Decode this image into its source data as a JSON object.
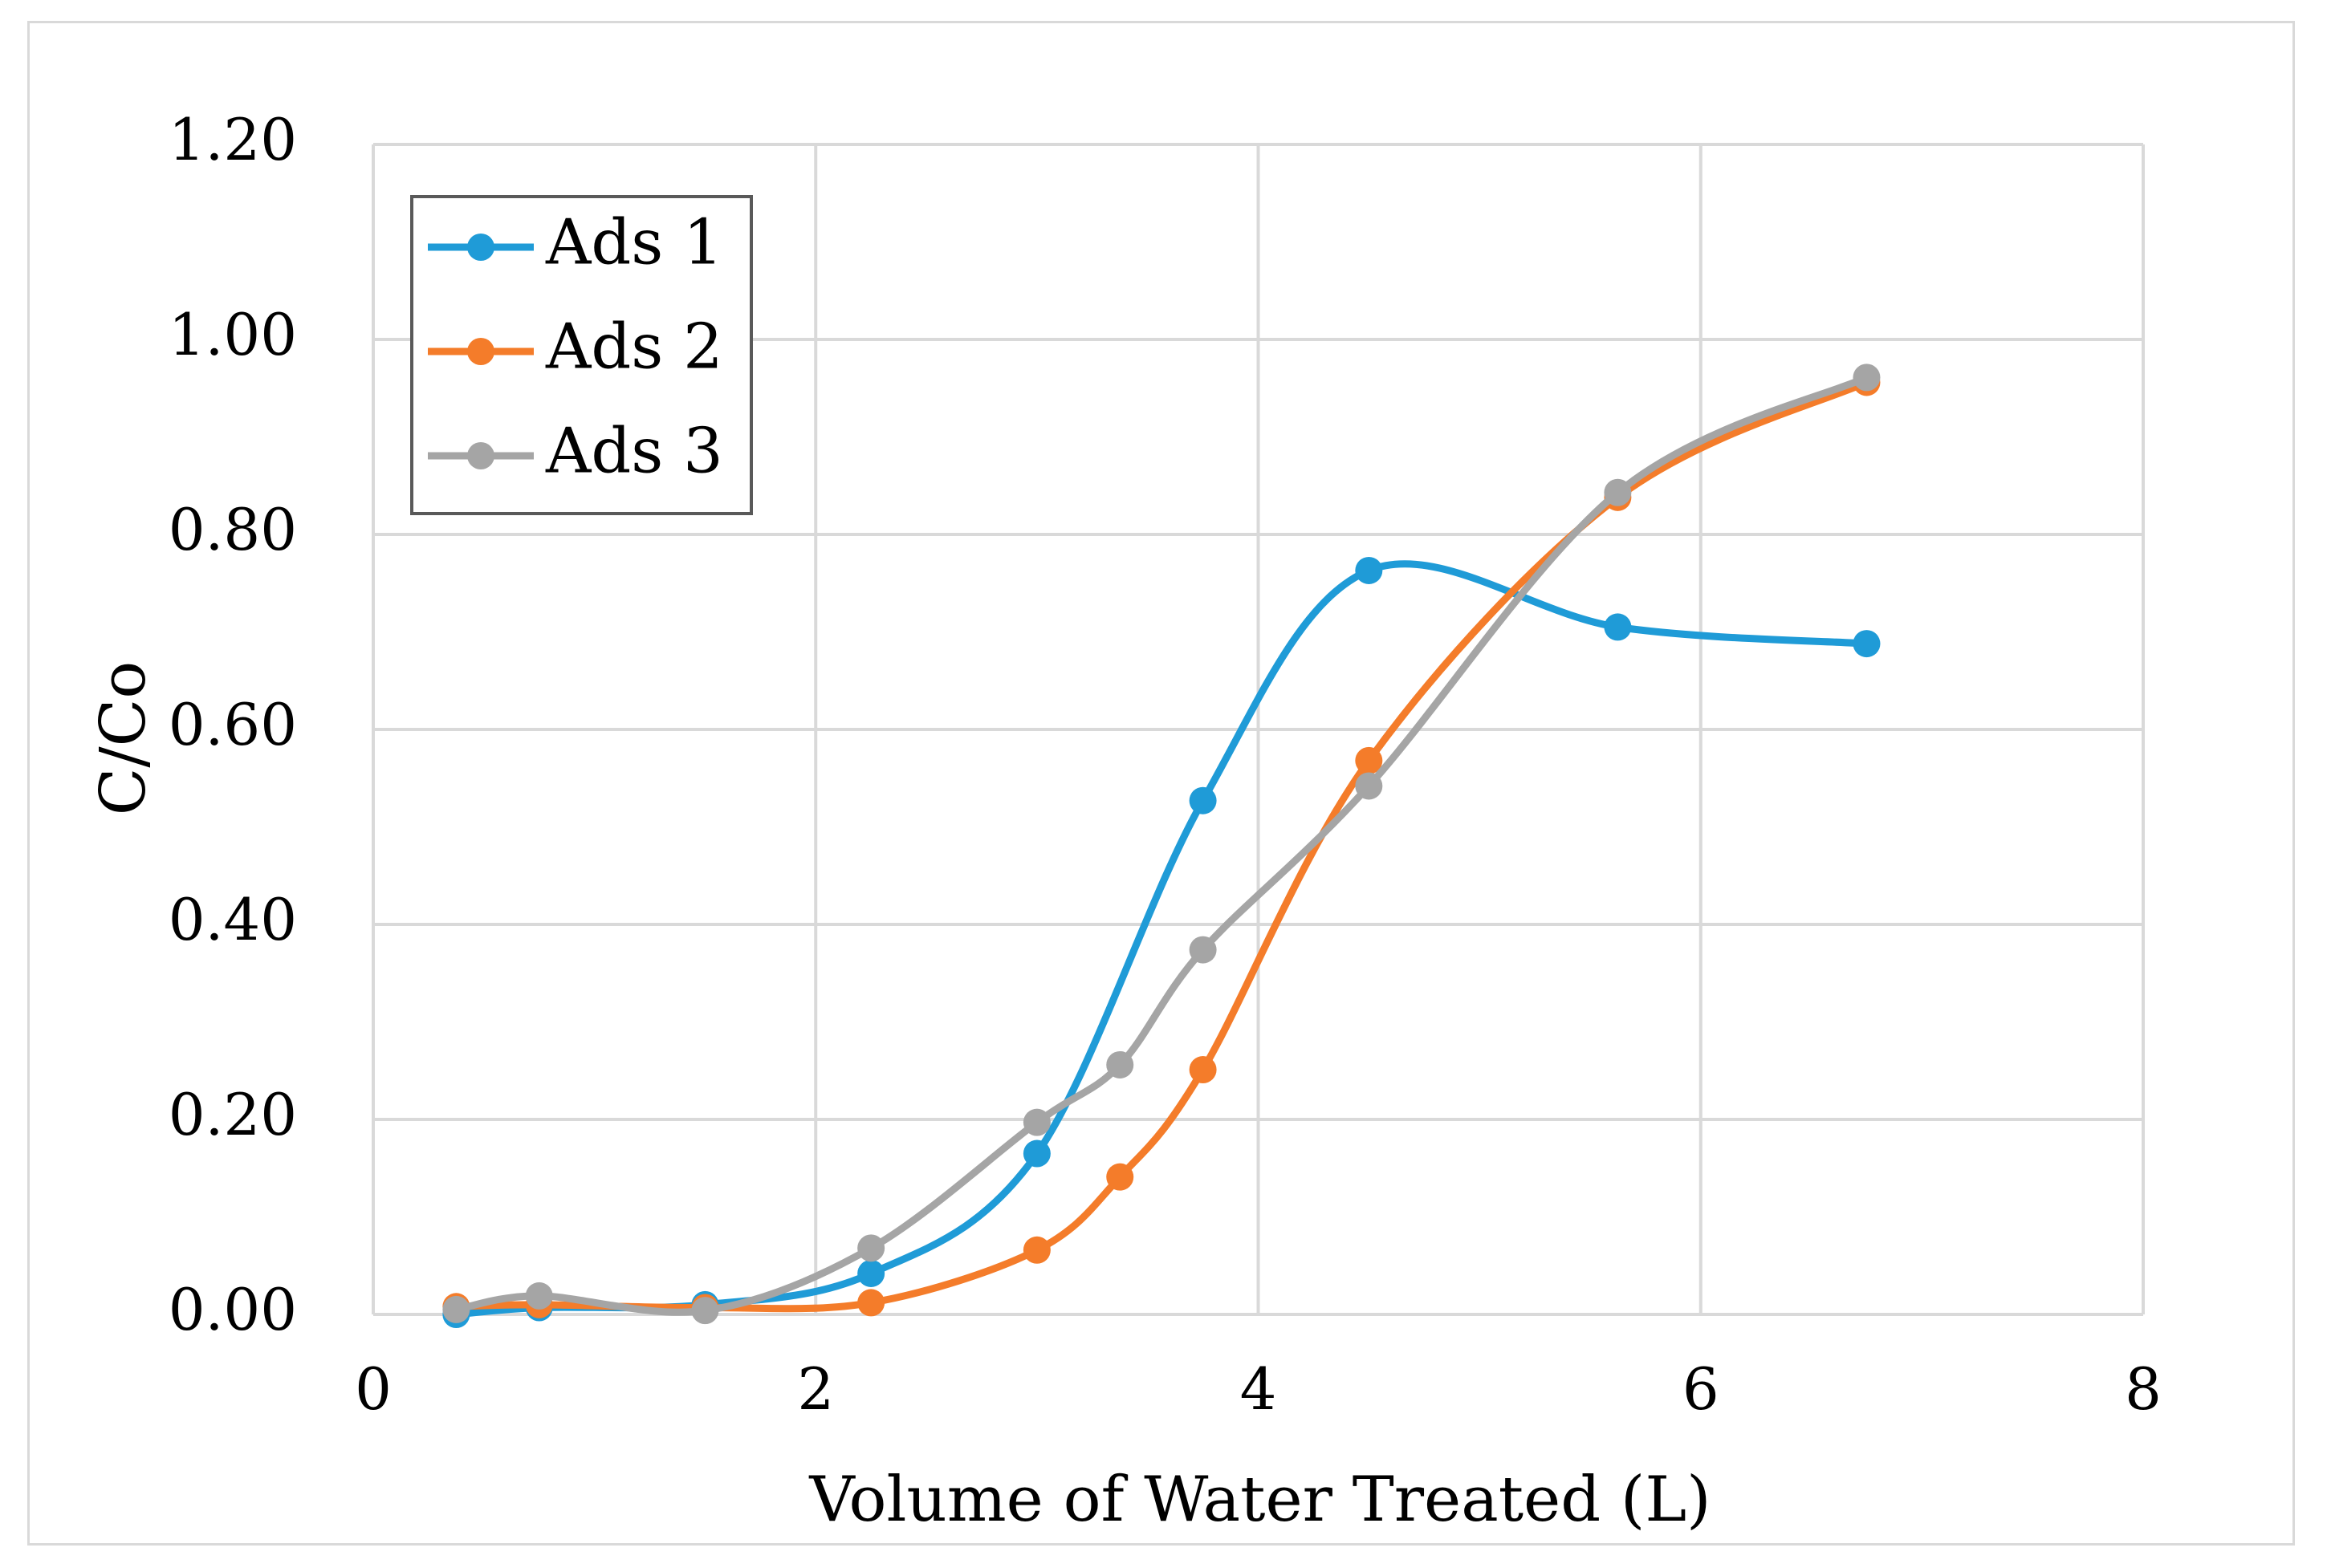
{
  "chart_data": {
    "type": "line",
    "title": "",
    "xlabel": "Volume of Water Treated (L)",
    "ylabel": "C/Co",
    "xlim": [
      0,
      8
    ],
    "ylim": [
      0,
      1.2
    ],
    "x_ticks": [
      0,
      2,
      4,
      6,
      8
    ],
    "y_ticks": [
      "0.00",
      "0.20",
      "0.40",
      "0.60",
      "0.80",
      "1.00",
      "1.20"
    ],
    "grid": true,
    "legend_position": "top-left",
    "series": [
      {
        "name": "Ads 1",
        "color": "#1f9bd7",
        "x": [
          0.375,
          0.75,
          1.5,
          2.25,
          3.0,
          3.75,
          4.5,
          5.625,
          6.75
        ],
        "y": [
          0.0,
          0.007,
          0.01,
          0.042,
          0.165,
          0.527,
          0.763,
          0.705,
          0.688
        ]
      },
      {
        "name": "Ads 2",
        "color": "#f47c2a",
        "x": [
          0.375,
          0.75,
          1.5,
          2.25,
          3.0,
          3.375,
          3.75,
          4.5,
          5.625,
          6.75
        ],
        "y": [
          0.008,
          0.01,
          0.007,
          0.012,
          0.066,
          0.141,
          0.251,
          0.568,
          0.838,
          0.956
        ]
      },
      {
        "name": "Ads 3",
        "color": "#a5a5a5",
        "x": [
          0.375,
          0.75,
          1.5,
          2.25,
          3.0,
          3.375,
          3.75,
          4.5,
          5.625,
          6.75
        ],
        "y": [
          0.005,
          0.019,
          0.004,
          0.068,
          0.197,
          0.256,
          0.374,
          0.542,
          0.843,
          0.961
        ]
      }
    ]
  }
}
